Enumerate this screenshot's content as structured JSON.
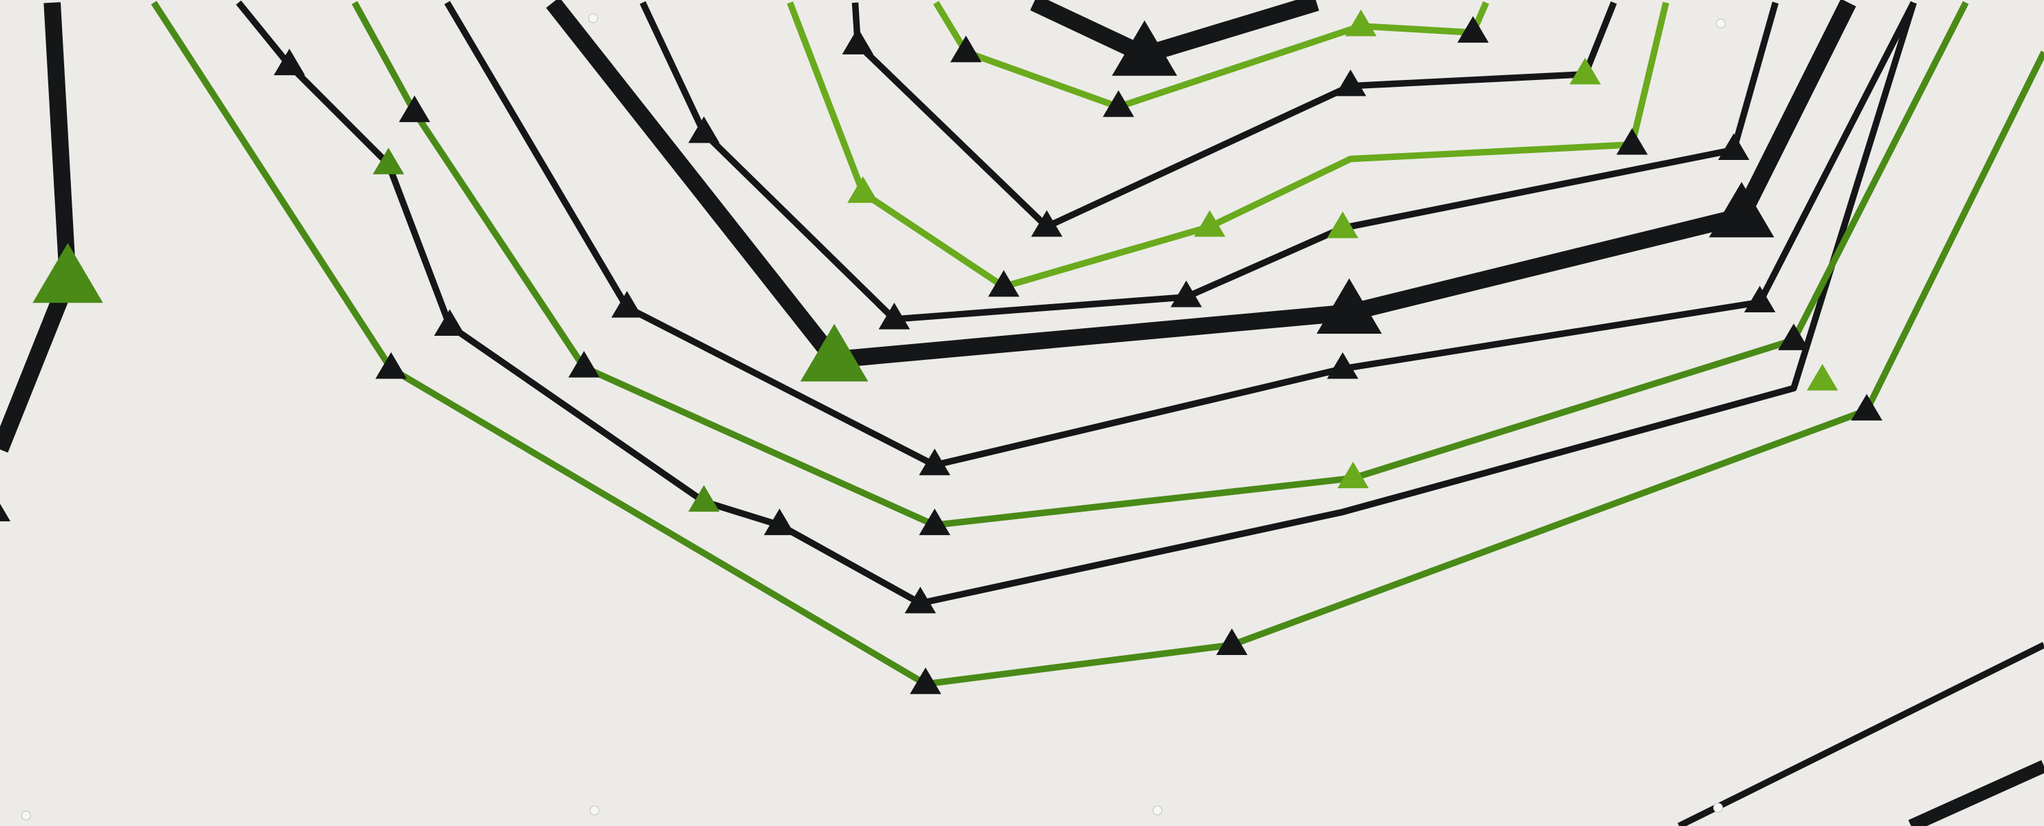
{
  "artwork": {
    "background": "#ecebe8",
    "palette": {
      "black": "#141617",
      "dark_green": "#4a8a17",
      "light_green": "#6aaa1d"
    },
    "elements": {
      "marker_shape": "triangle-icon",
      "connector_shape": "polyline",
      "screw_shape": "screw-icon"
    }
  }
}
